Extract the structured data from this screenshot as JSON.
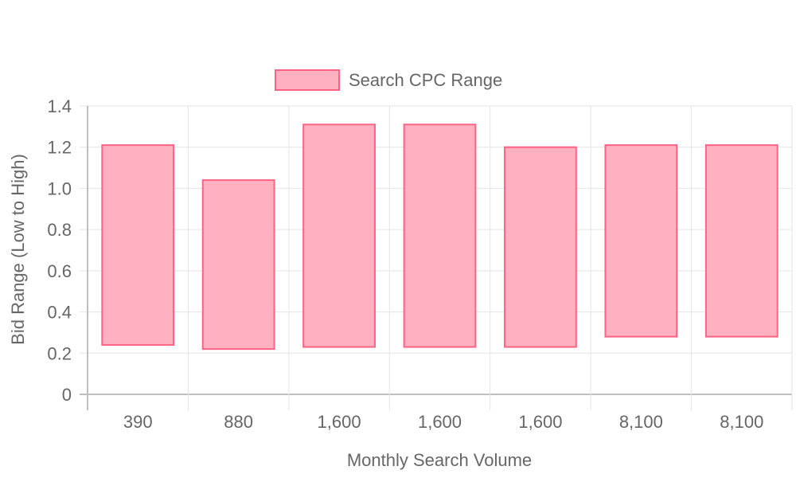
{
  "chart_data": {
    "type": "bar",
    "subtype": "floating-range",
    "categories": [
      "390",
      "880",
      "1,600",
      "1,600",
      "1,600",
      "8,100",
      "8,100"
    ],
    "series": [
      {
        "name": "Search CPC Range",
        "low": [
          0.24,
          0.22,
          0.23,
          0.23,
          0.23,
          0.28,
          0.28
        ],
        "high": [
          1.21,
          1.04,
          1.31,
          1.31,
          1.2,
          1.21,
          1.21
        ]
      }
    ],
    "xlabel": "Monthly Search Volume",
    "ylabel": "Bid Range (Low to High)",
    "ylim": [
      0,
      1.4
    ],
    "yticks": [
      "0",
      "0.2",
      "0.4",
      "0.6",
      "0.8",
      "1.0",
      "1.2",
      "1.4"
    ],
    "grid": true,
    "legend_position": "top-center",
    "colors": {
      "bar_fill": "#ffb1c1",
      "bar_stroke": "#ff6384",
      "grid": "#e5e5e5",
      "axis": "#bfbfbf",
      "text": "#666666"
    }
  }
}
